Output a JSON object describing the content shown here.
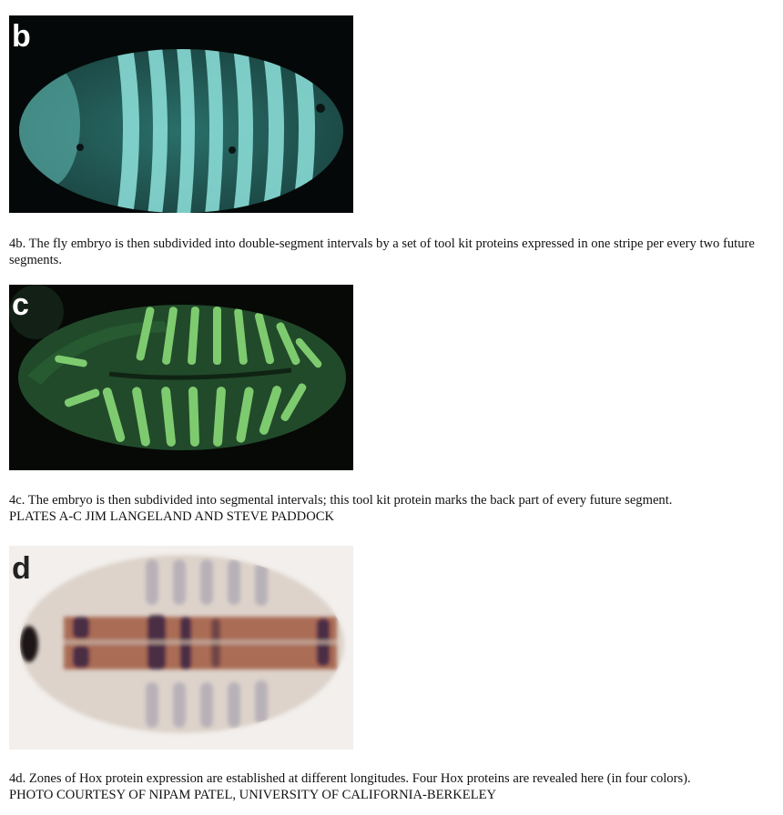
{
  "plates": [
    {
      "letter": "b",
      "caption": "4b. The fly embryo is then subdivided into double-segment intervals by a set of tool kit proteins expressed in one stripe per every two future segments.",
      "colors": {
        "background": "#050808",
        "embryo": "#1f5450",
        "stripe": "#8fe2dc"
      }
    },
    {
      "letter": "c",
      "caption": "4c. The embryo is then subdivided into segmental intervals; this tool kit protein marks the back part of every future segment.",
      "credit_prefix": "PLATES A-C JIM ",
      "credit_small": "LANGELAND AND STEVE PADDOCK",
      "colors": {
        "background": "#060906",
        "embryo": "#214a2a",
        "stripe": "#8fe27c"
      }
    },
    {
      "letter": "d",
      "caption": "4d. Zones of Hox protein expression are established at different longitudes. Four Hox proteins are revealed here (in four colors).",
      "credit_prefix": "PHOTO COURTESY OF ",
      "credit_small": "NIPAM PATEL, UNIVERSITY OF CALIFORNIA-BERKELEY",
      "colors": {
        "background": "#f2efec",
        "embryo": "#ddd3cb",
        "brown": "#9a4a2c",
        "purple": "#3a2440",
        "grey": "#8d8aa2"
      }
    }
  ]
}
